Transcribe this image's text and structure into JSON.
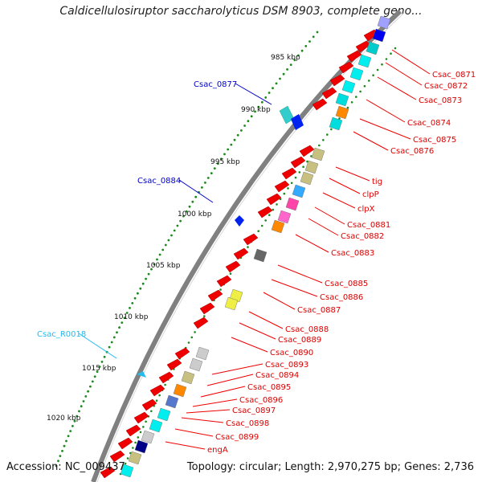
{
  "title": "Caldicellulosiruptor saccharolyticus DSM 8903, complete geno...",
  "footer": {
    "accession": "Accession: NC_009437",
    "summary": "Topology: circular; Length: 2,970,275 bp; Genes: 2,736"
  },
  "ticks": [
    "985 kbp",
    "990 kbp",
    "995 kbp",
    "1000 kbp",
    "1005 kbp",
    "1010 kbp",
    "1015 kbp",
    "1020 kbp"
  ],
  "left_labels": [
    {
      "text": "Csac_0877",
      "color": "#0000cc"
    },
    {
      "text": "Csac_0884",
      "color": "#0000cc"
    },
    {
      "text": "Csac_R0018",
      "color": "#22bbee"
    }
  ],
  "right_labels": [
    "Csac_0871",
    "Csac_0872",
    "Csac_0873",
    "Csac_0874",
    "Csac_0875",
    "Csac_0876",
    "tig",
    "clpP",
    "clpX",
    "Csac_0881",
    "Csac_0882",
    "Csac_0883",
    "Csac_0885",
    "Csac_0886",
    "Csac_0887",
    "Csac_0888",
    "Csac_0889",
    "Csac_0890",
    "Csac_0893",
    "Csac_0894",
    "Csac_0895",
    "Csac_0896",
    "Csac_0897",
    "Csac_0898",
    "Csac_0899",
    "engA"
  ],
  "colors": {
    "label_red": "#dd0000",
    "backbone": "#888888",
    "gene_red": "#ee0000",
    "tick_green": "#1a8a1a"
  }
}
